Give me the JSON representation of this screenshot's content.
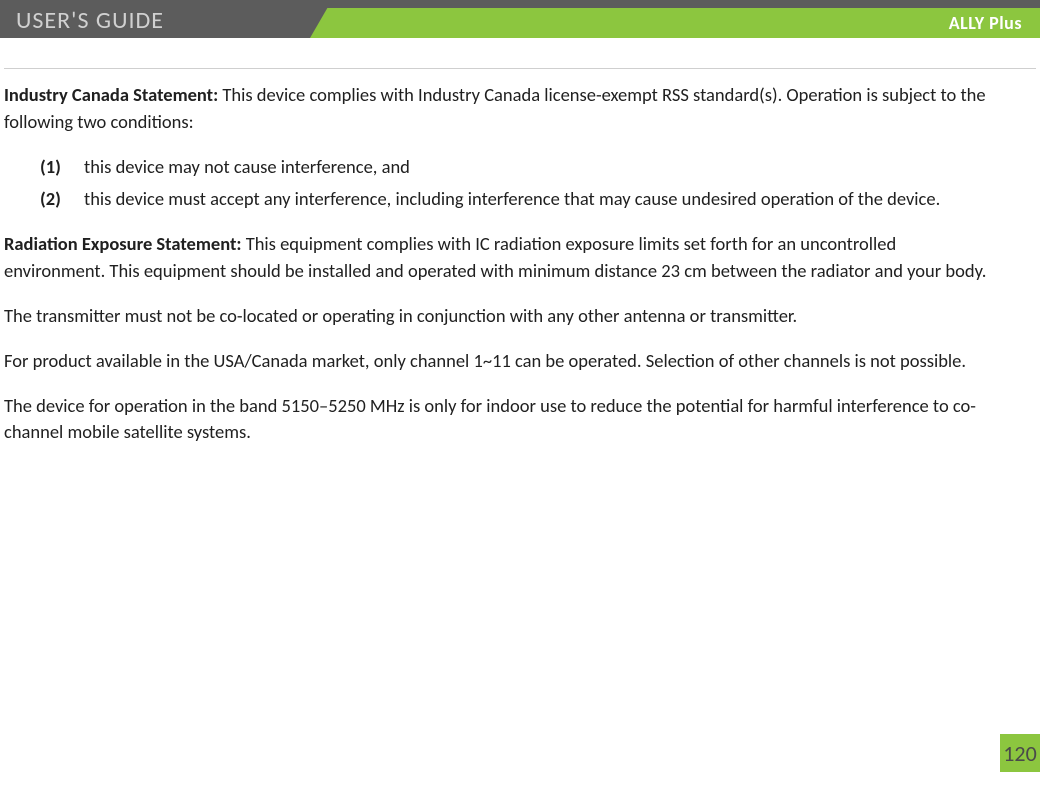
{
  "header": {
    "guide_title": "USER'S GUIDE",
    "product_name": "ALLY Plus",
    "colors": {
      "green": "#8cc63f",
      "dark": "#5c5c5c",
      "title_text": "#d0d0d0",
      "product_text": "#ffffff"
    }
  },
  "body": {
    "ic_label": "Industry Canada Statement:",
    "ic_text": " This device complies with Industry Canada license-exempt RSS standard(s). Operation is subject to the following two conditions:",
    "conditions": [
      {
        "num": "(1)",
        "text": "this device may not cause interference, and"
      },
      {
        "num": "(2)",
        "text": "this device must accept any interference, including interference that may cause undesired operation of the device."
      }
    ],
    "rad_label": "Radiation Exposure Statement:",
    "rad_text": " This equipment complies with IC radiation exposure limits set forth for an uncontrolled environment.  This equipment should be installed and operated with minimum distance 23 cm between the radiator and your body.",
    "p_transmitter": "The transmitter must not be co-located or operating in conjunction with any other antenna or transmitter.",
    "p_channels": "For product available in the USA/Canada market, only channel 1~11 can be operated. Selection of other channels is not possible.",
    "p_band": "The device for operation in the band 5150–5250 MHz is only for indoor use to reduce the potential for harmful interference to co-channel mobile satellite systems."
  },
  "page_number": "120",
  "typography": {
    "body_font_size_pt": 14,
    "body_color": "#202020",
    "line_height": 1.45
  }
}
